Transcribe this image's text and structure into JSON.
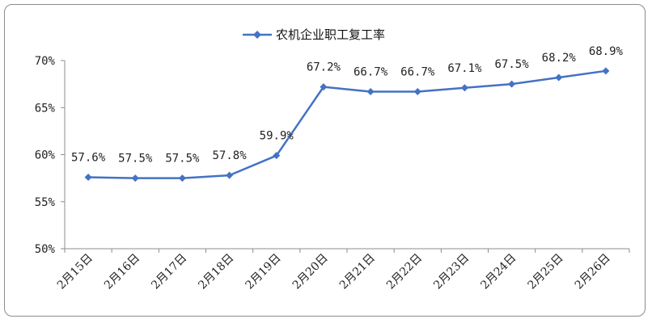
{
  "chart_data": {
    "type": "line",
    "title": "",
    "xlabel": "",
    "ylabel": "",
    "categories": [
      "2月15日",
      "2月16日",
      "2月17日",
      "2月18日",
      "2月19日",
      "2月20日",
      "2月21日",
      "2月22日",
      "2月23日",
      "2月24日",
      "2月25日",
      "2月26日"
    ],
    "ylim": [
      50,
      70
    ],
    "yticks": [
      50,
      55,
      60,
      65,
      70
    ],
    "ytick_labels": [
      "50%",
      "55%",
      "60%",
      "65%",
      "70%"
    ],
    "grid": false,
    "legend": "top-center",
    "series": [
      {
        "name": "农机企业职工复工率",
        "color": "#4472C4",
        "marker": "diamond",
        "values": [
          57.6,
          57.5,
          57.5,
          57.8,
          59.9,
          67.2,
          66.7,
          66.7,
          67.1,
          67.5,
          68.2,
          68.9
        ],
        "data_labels": [
          "57.6%",
          "57.5%",
          "57.5%",
          "57.8%",
          "59.9%",
          "67.2%",
          "66.7%",
          "66.7%",
          "67.1%",
          "67.5%",
          "68.2%",
          "68.9%"
        ]
      }
    ]
  }
}
